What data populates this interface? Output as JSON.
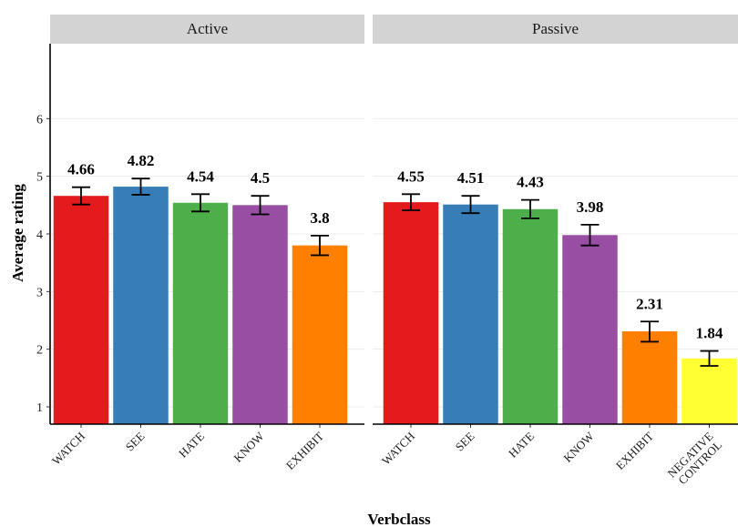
{
  "chart_data": {
    "type": "bar",
    "title": "",
    "xlabel": "Verbclass",
    "ylabel": "Average rating",
    "ylim": [
      0.7,
      7.3
    ],
    "yticks": [
      1,
      2,
      3,
      4,
      5,
      6
    ],
    "grid": true,
    "legend": "none",
    "panels": [
      {
        "name": "Active",
        "bars": [
          {
            "category": "WATCH",
            "value": 4.66,
            "label": "4.66",
            "err_low": 4.51,
            "err_high": 4.81,
            "color": "#e41a1c"
          },
          {
            "category": "SEE",
            "value": 4.82,
            "label": "4.82",
            "err_low": 4.68,
            "err_high": 4.96,
            "color": "#377eb8"
          },
          {
            "category": "HATE",
            "value": 4.54,
            "label": "4.54",
            "err_low": 4.39,
            "err_high": 4.69,
            "color": "#4daf4a"
          },
          {
            "category": "KNOW",
            "value": 4.5,
            "label": "4.5",
            "err_low": 4.34,
            "err_high": 4.66,
            "color": "#984ea3"
          },
          {
            "category": "EXHIBIT",
            "value": 3.8,
            "label": "3.8",
            "err_low": 3.63,
            "err_high": 3.97,
            "color": "#ff7f00"
          }
        ]
      },
      {
        "name": "Passive",
        "bars": [
          {
            "category": "WATCH",
            "value": 4.55,
            "label": "4.55",
            "err_low": 4.41,
            "err_high": 4.69,
            "color": "#e41a1c"
          },
          {
            "category": "SEE",
            "value": 4.51,
            "label": "4.51",
            "err_low": 4.36,
            "err_high": 4.66,
            "color": "#377eb8"
          },
          {
            "category": "HATE",
            "value": 4.43,
            "label": "4.43",
            "err_low": 4.27,
            "err_high": 4.59,
            "color": "#4daf4a"
          },
          {
            "category": "KNOW",
            "value": 3.98,
            "label": "3.98",
            "err_low": 3.8,
            "err_high": 4.16,
            "color": "#984ea3"
          },
          {
            "category": "EXHIBIT",
            "value": 2.31,
            "label": "2.31",
            "err_low": 2.13,
            "err_high": 2.48,
            "color": "#ff7f00"
          },
          {
            "category": "NEGATIVE CONTROL",
            "category_lines": [
              "NEGATIVE",
              "CONTROL"
            ],
            "value": 1.84,
            "label": "1.84",
            "err_low": 1.71,
            "err_high": 1.97,
            "color": "#ffff33"
          }
        ]
      }
    ]
  }
}
